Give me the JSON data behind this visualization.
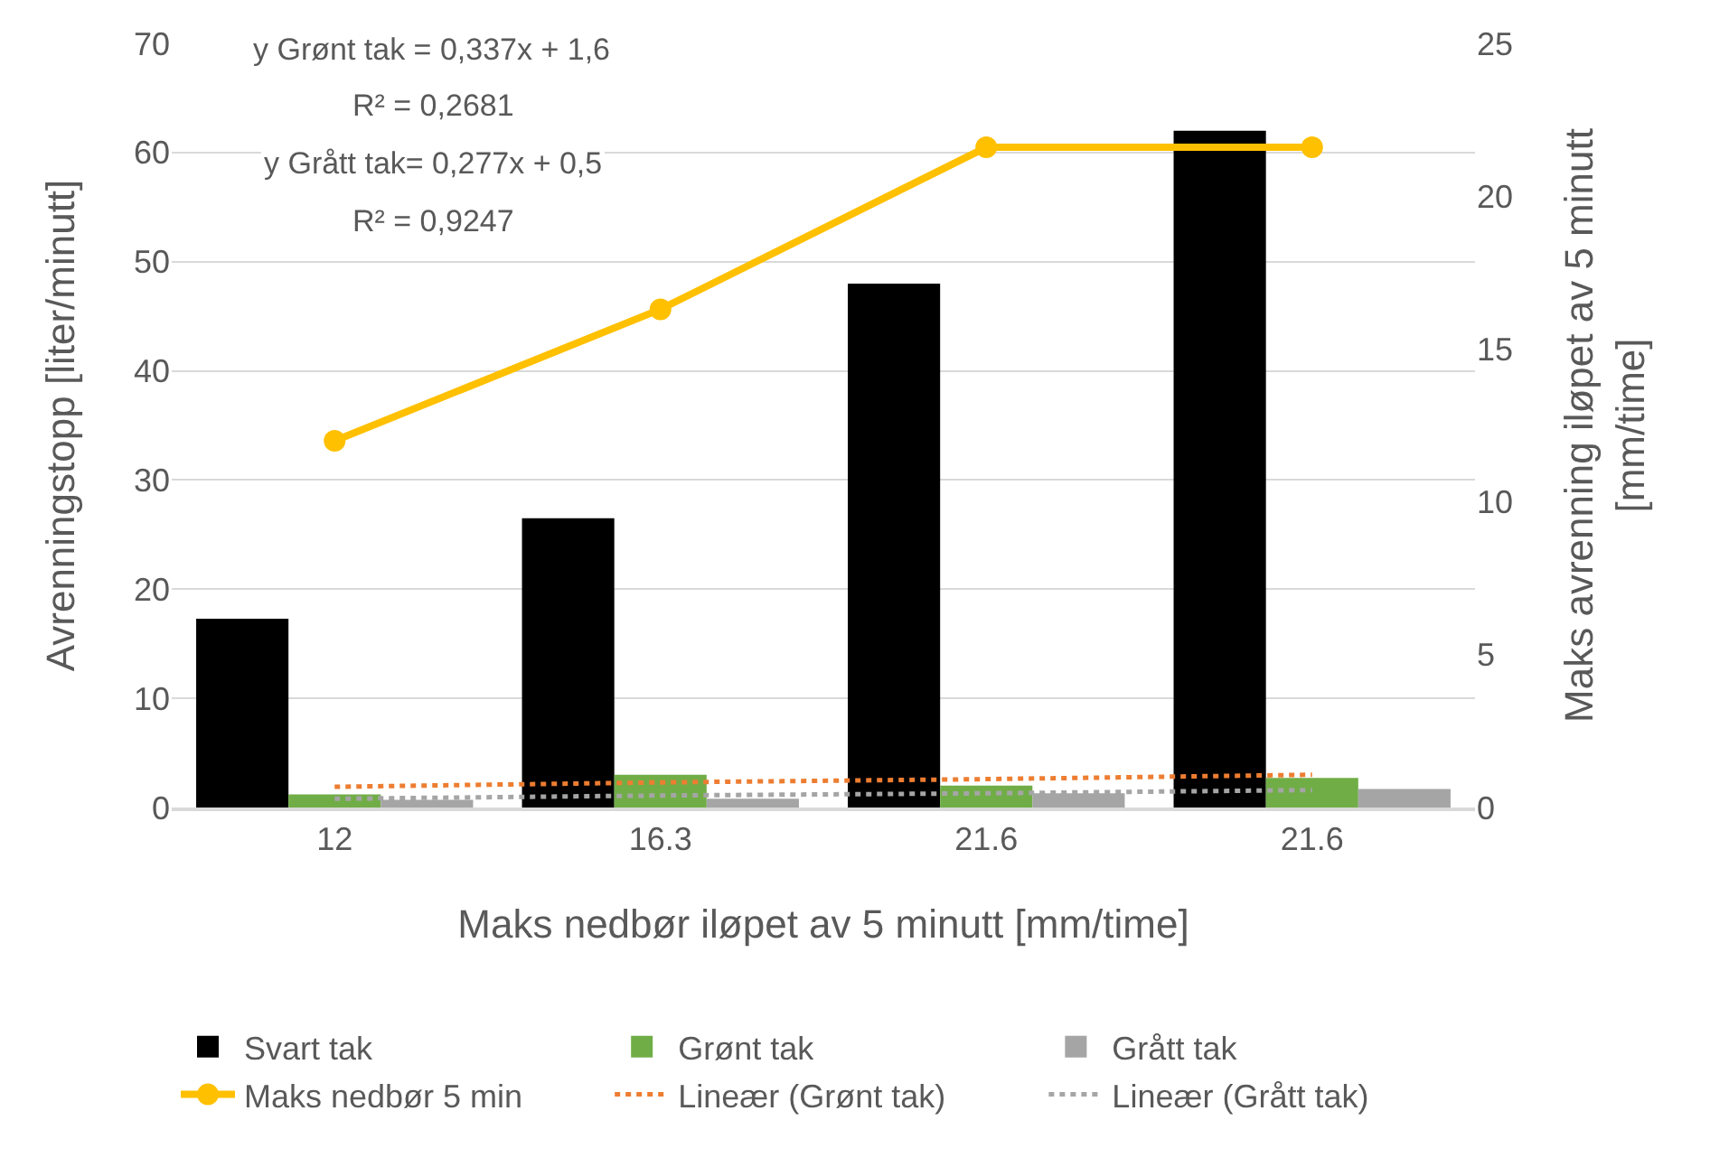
{
  "chart_data": {
    "type": "bar",
    "xlabel": "Maks nedbør iløpet av 5 minutt [mm/time]",
    "ylabel": "Avrenningstopp [liter/minutt]",
    "y2label": "Maks avrenning iløpet av 5 minutt\n[mm/time]",
    "categories": [
      "12",
      "16.3",
      "21.6",
      "21.6"
    ],
    "series": [
      {
        "name": "Svart tak",
        "color": "#000000",
        "values": [
          17.3,
          26.5,
          48,
          62
        ]
      },
      {
        "name": "Grønt tak",
        "color": "#70ad47",
        "values": [
          1.2,
          3.0,
          2.0,
          2.7
        ]
      },
      {
        "name": "Grått tak",
        "color": "#a5a5a5",
        "values": [
          0.7,
          0.8,
          1.3,
          1.7
        ]
      },
      {
        "name": "Maks nedbør 5 min",
        "type": "line",
        "axis": "y2",
        "color": "#ffc000",
        "marker": "circle",
        "line_style": "solid",
        "values": [
          12,
          16.3,
          21.6,
          21.6
        ]
      },
      {
        "name": "Lineær (Grønt tak)",
        "type": "line",
        "color": "#ed7d31",
        "marker": "none",
        "line_style": "dotted",
        "values": [
          1.9,
          2.3,
          2.6,
          3.0
        ]
      },
      {
        "name": "Lineær (Grått tak)",
        "type": "line",
        "color": "#a5a5a5",
        "marker": "none",
        "line_style": "dotted",
        "values": [
          0.8,
          1.1,
          1.3,
          1.6
        ]
      }
    ],
    "ylim": [
      0,
      70
    ],
    "yticks": [
      0,
      10,
      20,
      30,
      40,
      50,
      60,
      70
    ],
    "y2lim": [
      0,
      25
    ],
    "y2ticks": [
      0,
      5,
      10,
      15,
      20,
      25
    ],
    "annotations": [
      "y Grønt tak = 0,337x + 1,6",
      "R² = 0,2681",
      "y Grått tak= 0,277x + 0,5",
      "R² = 0,9247"
    ],
    "grid": "y",
    "legend": "bottom"
  }
}
